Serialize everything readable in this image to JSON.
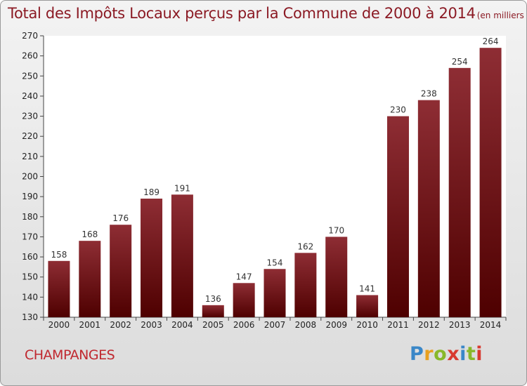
{
  "title": "Total des Impôts Locaux perçus par la Commune de 2000 à 2014",
  "title_unit": "(en milliers d'€)",
  "commune": "CHAMPANGES",
  "brand": {
    "letters": [
      "P",
      "r",
      "o",
      "x",
      "i",
      "t",
      "i"
    ],
    "colors": [
      "#3a87c8",
      "#e8a020",
      "#88b82a",
      "#d83a30",
      "#3a87c8",
      "#88b82a",
      "#d83a30"
    ]
  },
  "colors": {
    "bar_top": "#8e2d34",
    "bar_bottom": "#4e0000",
    "title": "#8b1a24",
    "axis_text": "#222222"
  },
  "chart_data": {
    "type": "bar",
    "categories": [
      "2000",
      "2001",
      "2002",
      "2003",
      "2004",
      "2005",
      "2006",
      "2007",
      "2008",
      "2009",
      "2010",
      "2011",
      "2012",
      "2013",
      "2014"
    ],
    "values": [
      158,
      168,
      176,
      189,
      191,
      136,
      147,
      154,
      162,
      170,
      141,
      230,
      238,
      254,
      264
    ],
    "ylim": [
      130,
      270
    ],
    "yticks": [
      130,
      140,
      150,
      160,
      170,
      180,
      190,
      200,
      210,
      220,
      230,
      240,
      250,
      260,
      270
    ],
    "grid": false,
    "legend": "none",
    "data_labels": true
  }
}
